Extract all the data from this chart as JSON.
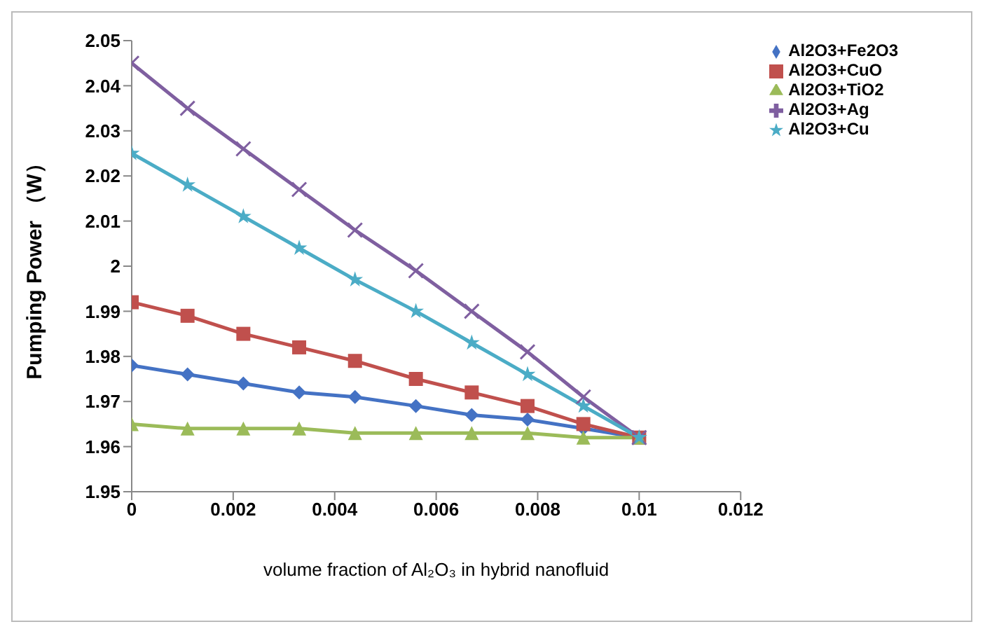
{
  "chart_data": {
    "type": "line",
    "xlabel": "volume fraction  of Al₂O₃ in hybrid nanofluid",
    "ylabel": "Pumping Power （W）",
    "x": [
      0,
      0.0011,
      0.0022,
      0.0033,
      0.0044,
      0.0056,
      0.0067,
      0.0078,
      0.0089,
      0.01
    ],
    "series": [
      {
        "name": "Al2O3+Fe2O3",
        "color": "#4472c4",
        "marker": "diamond",
        "values": [
          1.978,
          1.976,
          1.974,
          1.972,
          1.971,
          1.969,
          1.967,
          1.966,
          1.964,
          1.962
        ]
      },
      {
        "name": "Al2O3+CuO",
        "color": "#c0504d",
        "marker": "square",
        "values": [
          1.992,
          1.989,
          1.985,
          1.982,
          1.979,
          1.975,
          1.972,
          1.969,
          1.965,
          1.962
        ]
      },
      {
        "name": "Al2O3+TiO2",
        "color": "#9bbb59",
        "marker": "triangle",
        "values": [
          1.965,
          1.964,
          1.964,
          1.964,
          1.963,
          1.963,
          1.963,
          1.963,
          1.962,
          1.962
        ]
      },
      {
        "name": "Al2O3+Ag",
        "color": "#7f5fa0",
        "marker": "cross",
        "values": [
          2.045,
          2.035,
          2.026,
          2.017,
          2.008,
          1.999,
          1.99,
          1.981,
          1.971,
          1.962
        ]
      },
      {
        "name": "Al2O3+Cu",
        "color": "#4bacc6",
        "marker": "star",
        "values": [
          2.025,
          2.018,
          2.011,
          2.004,
          1.997,
          1.99,
          1.983,
          1.976,
          1.969,
          1.962
        ]
      }
    ],
    "xlim": [
      0,
      0.012
    ],
    "xticks": [
      0,
      0.002,
      0.004,
      0.006,
      0.008,
      0.01,
      0.012
    ],
    "ylim": [
      1.95,
      2.05
    ],
    "yticks": [
      1.95,
      1.96,
      1.97,
      1.98,
      1.99,
      2,
      2.01,
      2.02,
      2.03,
      2.04,
      2.05
    ],
    "grid": false,
    "legend": "top right",
    "line_style": "solid"
  }
}
